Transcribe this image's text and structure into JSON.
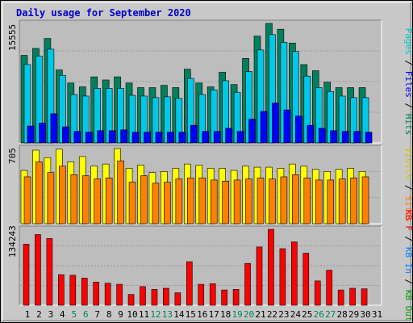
{
  "chart_data": {
    "type": "bar",
    "title": "Daily usage for September 2020",
    "days": [
      "1",
      "2",
      "3",
      "4",
      "5",
      "6",
      "7",
      "8",
      "9",
      "10",
      "11",
      "12",
      "13",
      "14",
      "15",
      "16",
      "17",
      "18",
      "19",
      "20",
      "21",
      "22",
      "23",
      "24",
      "25",
      "26",
      "27",
      "28",
      "29",
      "30",
      "31"
    ],
    "weekend_days": [
      "5",
      "6",
      "12",
      "13",
      "19",
      "20",
      "26",
      "27"
    ],
    "panels": [
      {
        "id": "hits",
        "ymax_label": "15555",
        "ymax": 15555,
        "legend": [
          {
            "text": "Pages",
            "color": "#00c8c8"
          },
          {
            "text": " / ",
            "color": "#000000"
          },
          {
            "text": "Files",
            "color": "#0000ff"
          },
          {
            "text": " / ",
            "color": "#000000"
          },
          {
            "text": "Hits",
            "color": "#00805c"
          }
        ],
        "series": [
          {
            "name": "Hits",
            "color": "#00805c",
            "values": [
              11400,
              12300,
              13600,
              9500,
              7800,
              7300,
              8600,
              8200,
              8600,
              7800,
              7200,
              7200,
              7500,
              7200,
              9600,
              7800,
              7300,
              9200,
              7600,
              11000,
              13900,
              15555,
              14800,
              13000,
              10200,
              9400,
              7900,
              7200,
              7200,
              7200,
              null
            ]
          },
          {
            "name": "Files",
            "color": "#00c8e8",
            "values": [
              10200,
              11300,
              12200,
              8800,
              6300,
              6100,
              7100,
              7100,
              7100,
              6200,
              6100,
              5900,
              6000,
              5800,
              8400,
              6300,
              6900,
              8100,
              6600,
              9300,
              12100,
              14100,
              13100,
              11900,
              8700,
              7200,
              6700,
              6100,
              5900,
              5900,
              null
            ]
          },
          {
            "name": "Pages",
            "color": "#0000ff",
            "values": [
              2200,
              2600,
              3800,
              2100,
              1500,
              1400,
              1600,
              1600,
              1700,
              1400,
              1400,
              1400,
              1400,
              1400,
              2300,
              1500,
              1500,
              1900,
              1500,
              3100,
              4100,
              5200,
              4300,
              3500,
              2300,
              1900,
              1600,
              1500,
              1500,
              1400,
              null
            ]
          }
        ]
      },
      {
        "id": "visits",
        "ymax_label": "705",
        "ymax": 705,
        "legend": [
          {
            "text": "Visits",
            "color": "#c8c800"
          },
          {
            "text": " / ",
            "color": "#000000"
          },
          {
            "text": "Sites",
            "color": "#ff8000"
          }
        ],
        "series": [
          {
            "name": "Visits",
            "color": "#ffff00",
            "values": [
              500,
              690,
              620,
              700,
              580,
              630,
              540,
              560,
              705,
              520,
              550,
              480,
              490,
              520,
              560,
              550,
              520,
              520,
              500,
              540,
              530,
              530,
              520,
              560,
              540,
              510,
              490,
              510,
              520,
              490,
              null
            ]
          },
          {
            "name": "Sites",
            "color": "#ff8000",
            "values": [
              440,
              580,
              480,
              540,
              460,
              450,
              420,
              430,
              590,
              390,
              450,
              380,
              390,
              420,
              430,
              430,
              410,
              400,
              410,
              420,
              430,
              420,
              440,
              460,
              430,
              410,
              410,
              420,
              430,
              440,
              null
            ]
          }
        ]
      },
      {
        "id": "kbytes",
        "ymax_label": "134243",
        "ymax": 134243,
        "legend": [
          {
            "text": "KB F",
            "color": "#ff0000"
          },
          {
            "text": " / ",
            "color": "#000000"
          },
          {
            "text": "KB In",
            "color": "#0080ff"
          },
          {
            "text": " / ",
            "color": "#000000"
          },
          {
            "text": "KB Out",
            "color": "#00a000"
          }
        ],
        "series": [
          {
            "name": "KB F",
            "color": "#ff0000",
            "values": [
              108000,
              125000,
              118000,
              54000,
              53000,
              48000,
              41000,
              39000,
              37000,
              19000,
              33000,
              28000,
              30000,
              22000,
              77000,
              37000,
              38000,
              27000,
              28000,
              74000,
              103000,
              134243,
              100000,
              112000,
              92000,
              43000,
              62000,
              27000,
              30000,
              29000,
              null
            ]
          }
        ]
      }
    ]
  }
}
